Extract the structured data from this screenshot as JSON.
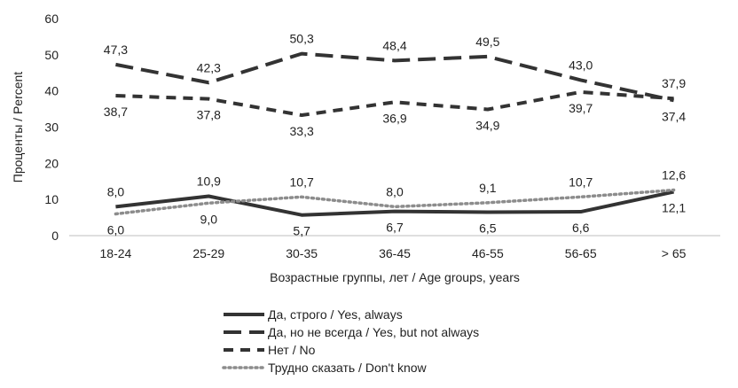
{
  "chart_data": {
    "type": "line",
    "categories": [
      "18-24",
      "25-29",
      "30-35",
      "36-45",
      "46-55",
      "56-65",
      "> 65"
    ],
    "series": [
      {
        "name": "Да, строго / Yes, always",
        "values": [
          8.0,
          10.9,
          5.7,
          6.7,
          6.5,
          6.6,
          12.1
        ],
        "labels": [
          "8,0",
          "10,9",
          "5,7",
          "6,7",
          "6,5",
          "6,6",
          "12,1"
        ],
        "label_pos": [
          "above",
          "above",
          "below",
          "below",
          "below",
          "below",
          "below"
        ],
        "color": "#333333",
        "style": "solid"
      },
      {
        "name": "Да, но не всегда / Yes, but not always",
        "values": [
          47.3,
          42.3,
          50.3,
          48.4,
          49.5,
          43.0,
          37.4
        ],
        "labels": [
          "47,3",
          "42,3",
          "50,3",
          "48,4",
          "49,5",
          "43,0",
          "37,4"
        ],
        "label_pos": [
          "above",
          "above",
          "above",
          "above",
          "above",
          "above",
          "below"
        ],
        "color": "#333333",
        "style": "longdash"
      },
      {
        "name": "Нет / No",
        "values": [
          38.7,
          37.8,
          33.3,
          36.9,
          34.9,
          39.7,
          37.9
        ],
        "labels": [
          "38,7",
          "37,8",
          "33,3",
          "36,9",
          "34,9",
          "39,7",
          "37,9"
        ],
        "label_pos": [
          "below",
          "below",
          "below",
          "below",
          "below",
          "below",
          "above"
        ],
        "color": "#333333",
        "style": "dash"
      },
      {
        "name": "Трудно сказать / Don't know",
        "values": [
          6.0,
          9.0,
          10.7,
          8.0,
          9.1,
          10.7,
          12.6
        ],
        "labels": [
          "6,0",
          "9,0",
          "10,7",
          "8,0",
          "9,1",
          "10,7",
          "12,6"
        ],
        "label_pos": [
          "below",
          "below",
          "above",
          "above",
          "above",
          "above",
          "above"
        ],
        "color": "#8c8c8c",
        "style": "dot"
      }
    ],
    "xlabel": "Возрастные группы, лет / Age groups, years",
    "ylabel": "Проценты / Percent",
    "ylim": [
      0,
      60
    ],
    "yticks": [
      0,
      10,
      20,
      30,
      40,
      50,
      60
    ],
    "grid": false,
    "legend_position": "bottom"
  }
}
